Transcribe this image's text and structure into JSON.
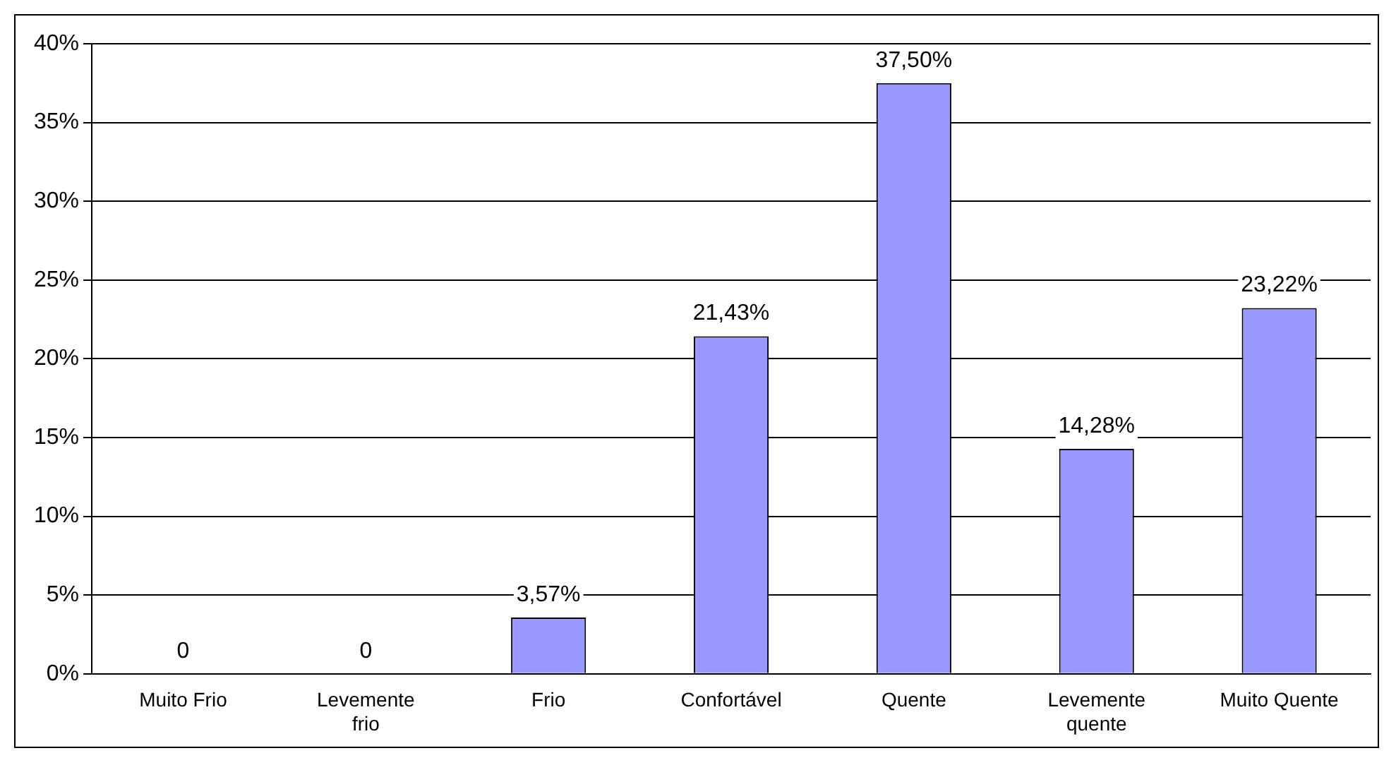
{
  "chart_data": {
    "type": "bar",
    "categories": [
      "Muito Frio",
      "Levemente frio",
      "Frio",
      "Confortável",
      "Quente",
      "Levemente quente",
      "Muito Quente"
    ],
    "values": [
      0,
      0,
      3.57,
      21.43,
      37.5,
      14.28,
      23.22
    ],
    "value_labels": [
      "0",
      "0",
      "3,57%",
      "21,43%",
      "37,50%",
      "14,28%",
      "23,22%"
    ],
    "color": "#9999ff",
    "ylim": [
      0,
      40
    ],
    "yticks": [
      {
        "value": 0,
        "label": "0%"
      },
      {
        "value": 5,
        "label": "5%"
      },
      {
        "value": 10,
        "label": "10%"
      },
      {
        "value": 15,
        "label": "15%"
      },
      {
        "value": 20,
        "label": "20%"
      },
      {
        "value": 25,
        "label": "25%"
      },
      {
        "value": 30,
        "label": "30%"
      },
      {
        "value": 35,
        "label": "35%"
      },
      {
        "value": 40,
        "label": "40%"
      }
    ],
    "grid": "y",
    "legend": false
  }
}
